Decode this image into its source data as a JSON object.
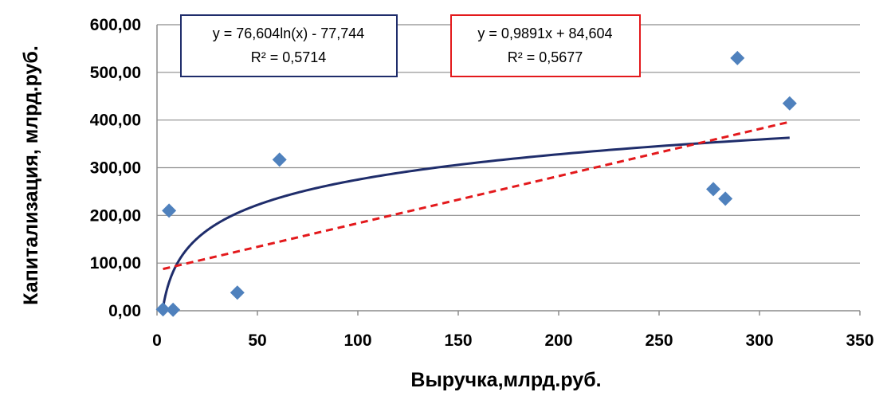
{
  "chart_data": {
    "type": "scatter",
    "xlabel": "Выручка,млрд.руб.",
    "ylabel": "Капитализация,  млрд.руб.",
    "xlim": [
      0,
      350
    ],
    "ylim": [
      0,
      600
    ],
    "x_ticks": [
      "0",
      "50",
      "100",
      "150",
      "200",
      "250",
      "300",
      "350"
    ],
    "y_ticks": [
      "0,00",
      "100,00",
      "200,00",
      "300,00",
      "400,00",
      "500,00",
      "600,00"
    ],
    "grid": "horizontal",
    "points": [
      {
        "x": 3,
        "y": 3
      },
      {
        "x": 6,
        "y": 210
      },
      {
        "x": 8,
        "y": 2
      },
      {
        "x": 40,
        "y": 38
      },
      {
        "x": 61,
        "y": 317
      },
      {
        "x": 277,
        "y": 255
      },
      {
        "x": 283,
        "y": 235
      },
      {
        "x": 289,
        "y": 530
      },
      {
        "x": 315,
        "y": 435
      }
    ],
    "marker_color": "#4f81bd",
    "trendlines": [
      {
        "type": "logarithmic",
        "a": 76.604,
        "b": -77.744,
        "x_range": [
          3,
          315
        ],
        "color": "#1f2d6b",
        "equation": "y = 76,604ln(x) - 77,744",
        "r2": "R² = 0,5714"
      },
      {
        "type": "linear",
        "slope": 0.9891,
        "intercept": 84.604,
        "x_range": [
          3,
          315
        ],
        "color": "#e3191c",
        "equation": "y = 0,9891x + 84,604",
        "r2": "R² = 0,5677"
      }
    ]
  }
}
